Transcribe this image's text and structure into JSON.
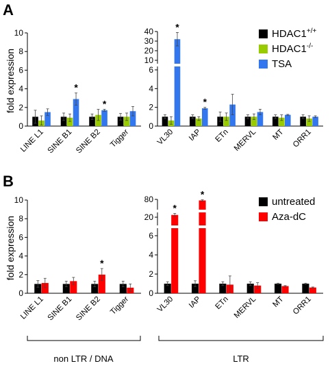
{
  "labels": {
    "panel_a": "A",
    "panel_b": "B",
    "ylabel": "fold expression",
    "group_left": "non LTR / DNA",
    "group_right": "LTR"
  },
  "colors": {
    "black": "#000000",
    "green": "#99cc00",
    "blue": "#3377ee",
    "red": "#ff0000"
  },
  "chart_data": [
    {
      "type": "bar",
      "panel": "A-left",
      "categories": [
        "LINE L1",
        "SINE B1",
        "SINE B2",
        "Tigger"
      ],
      "ylim": [
        0,
        10
      ],
      "yticks": [
        "0",
        "2",
        "4",
        "6",
        "8",
        "10"
      ],
      "series": [
        {
          "name": "HDAC1+/+",
          "values": [
            1.0,
            1.0,
            1.0,
            1.0
          ],
          "errors": [
            0.7,
            0.4,
            0.3,
            0.35
          ]
        },
        {
          "name": "HDAC1-/-",
          "values": [
            0.6,
            0.9,
            1.2,
            1.0
          ],
          "errors": [
            0.5,
            0.4,
            0.6,
            0.4
          ]
        },
        {
          "name": "TSA",
          "values": [
            1.5,
            2.9,
            1.7,
            1.6
          ],
          "errors": [
            0.35,
            0.65,
            0.1,
            0.5
          ]
        }
      ],
      "significant": [
        {
          "category": "SINE B1",
          "series": "TSA",
          "label": "*"
        },
        {
          "category": "SINE B2",
          "series": "TSA",
          "label": "*"
        }
      ]
    },
    {
      "type": "bar",
      "panel": "A-right",
      "broken_axis": true,
      "categories": [
        "VL30",
        "IAP",
        "ETn",
        "MERVL",
        "MT",
        "ORR1"
      ],
      "ylim": [
        0,
        40
      ],
      "yticks": [
        "0",
        "2",
        "4",
        "6",
        "10",
        "20",
        "30",
        "40"
      ],
      "series": [
        {
          "name": "HDAC1+/+",
          "values": [
            1.0,
            1.0,
            1.0,
            1.0,
            1.0,
            1.0
          ],
          "errors": [
            0.2,
            0.2,
            0.5,
            0.2,
            0.2,
            0.2
          ]
        },
        {
          "name": "HDAC1-/-",
          "values": [
            0.6,
            0.8,
            1.0,
            1.0,
            0.9,
            0.8
          ],
          "errors": [
            0.4,
            0.2,
            0.4,
            0.3,
            0.3,
            0.3
          ]
        },
        {
          "name": "TSA",
          "values": [
            32,
            1.9,
            2.3,
            1.5,
            1.2,
            1.0
          ],
          "errors": [
            7,
            0.1,
            1.1,
            0.3,
            0.05,
            0.1
          ]
        }
      ],
      "significant": [
        {
          "category": "VL30",
          "series": "TSA",
          "label": "*"
        },
        {
          "category": "IAP",
          "series": "TSA",
          "label": "*"
        }
      ]
    },
    {
      "type": "bar",
      "panel": "B-left",
      "categories": [
        "LINE L1",
        "SINE B1",
        "SINE B2",
        "Tigger"
      ],
      "ylim": [
        0,
        10
      ],
      "yticks": [
        "0",
        "2",
        "4",
        "6",
        "8",
        "10"
      ],
      "series": [
        {
          "name": "untreated",
          "values": [
            1.0,
            1.0,
            1.0,
            1.0
          ],
          "errors": [
            0.35,
            0.3,
            0.3,
            0.3
          ]
        },
        {
          "name": "Aza-dC",
          "values": [
            1.1,
            1.3,
            2.0,
            0.6
          ],
          "errors": [
            0.5,
            0.4,
            0.65,
            0.4
          ]
        }
      ],
      "significant": [
        {
          "category": "SINE B2",
          "series": "Aza-dC",
          "label": "*"
        }
      ]
    },
    {
      "type": "bar",
      "panel": "B-right",
      "broken_axis": true,
      "categories": [
        "VL30",
        "IAP",
        "ETn",
        "MERVL",
        "MT",
        "ORR1"
      ],
      "ylim": [
        0,
        80
      ],
      "yticks": [
        "0",
        "2",
        "4",
        "6",
        "20",
        "80"
      ],
      "series": [
        {
          "name": "untreated",
          "values": [
            1.0,
            1.0,
            1.0,
            1.0,
            1.0,
            1.0
          ],
          "errors": [
            0.2,
            0.3,
            0.2,
            0.2,
            0.05,
            0.05
          ]
        },
        {
          "name": "Aza-dC",
          "values": [
            23,
            75,
            0.9,
            0.8,
            0.75,
            0.6
          ],
          "errors": [
            2,
            3,
            0.9,
            0.3,
            0.05,
            0.05
          ]
        }
      ],
      "significant": [
        {
          "category": "VL30",
          "series": "Aza-dC",
          "label": "*"
        },
        {
          "category": "IAP",
          "series": "Aza-dC",
          "label": "*"
        }
      ]
    }
  ],
  "legend_a": [
    {
      "text": "HDAC1",
      "sup": "+/+",
      "color": "#000000"
    },
    {
      "text": "HDAC1",
      "sup": "-/-",
      "color": "#99cc00"
    },
    {
      "text": "TSA",
      "sup": "",
      "color": "#3377ee"
    }
  ],
  "legend_b": [
    {
      "text": "untreated",
      "color": "#000000"
    },
    {
      "text": "Aza-dC",
      "color": "#ff0000"
    }
  ]
}
